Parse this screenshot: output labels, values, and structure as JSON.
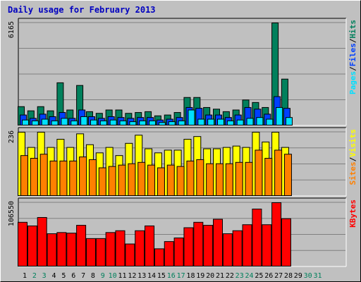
{
  "window": {
    "title": "Daily usage for February 2013"
  },
  "colors": {
    "hits": "#00805c",
    "files": "#0040ff",
    "pages": "#00e0ff",
    "visits": "#ffff00",
    "sites": "#ff8000",
    "kbytes": "#ff0000",
    "weekday_label": "#000000",
    "weekend_label": "#00805c",
    "background": "#c0c0c0",
    "grid": "#808080"
  },
  "chart_data": [
    {
      "type": "bar",
      "panel": "hits-files-pages",
      "legend": [
        "Pages",
        "Files",
        "Hits"
      ],
      "legend_separator": "/",
      "ylabel_max": "6165",
      "ylim": [
        0,
        6165
      ],
      "grid": true,
      "categories": [
        "1",
        "2",
        "3",
        "4",
        "5",
        "6",
        "7",
        "8",
        "9",
        "10",
        "11",
        "12",
        "13",
        "14",
        "15",
        "16",
        "17",
        "18",
        "19",
        "20",
        "21",
        "22",
        "23",
        "24",
        "25",
        "26",
        "27",
        "28",
        "29",
        "30",
        "31"
      ],
      "series": [
        {
          "name": "Hits",
          "values": [
            1150,
            900,
            1150,
            900,
            2580,
            950,
            2420,
            850,
            750,
            950,
            950,
            750,
            800,
            850,
            600,
            650,
            800,
            1700,
            1700,
            1100,
            1000,
            850,
            950,
            1550,
            1400,
            1100,
            6165,
            2800,
            0,
            0,
            0
          ]
        },
        {
          "name": "Files",
          "values": [
            650,
            450,
            700,
            550,
            800,
            450,
            950,
            550,
            450,
            550,
            500,
            450,
            500,
            500,
            350,
            400,
            500,
            1100,
            1050,
            650,
            650,
            500,
            650,
            1100,
            1000,
            700,
            1750,
            1050,
            0,
            0,
            0
          ]
        },
        {
          "name": "Pages",
          "values": [
            350,
            300,
            400,
            300,
            450,
            300,
            550,
            350,
            300,
            350,
            300,
            250,
            300,
            300,
            200,
            250,
            300,
            950,
            400,
            400,
            400,
            300,
            350,
            450,
            500,
            400,
            1100,
            500,
            0,
            0,
            0
          ]
        }
      ]
    },
    {
      "type": "bar",
      "panel": "visits-sites",
      "legend": [
        "Sites",
        "Visits"
      ],
      "legend_separator": "/",
      "ylabel_max": "236",
      "ylim": [
        0,
        236
      ],
      "grid": true,
      "categories": [
        "1",
        "2",
        "3",
        "4",
        "5",
        "6",
        "7",
        "8",
        "9",
        "10",
        "11",
        "12",
        "13",
        "14",
        "15",
        "16",
        "17",
        "18",
        "19",
        "20",
        "21",
        "22",
        "23",
        "24",
        "25",
        "26",
        "27",
        "28",
        "29",
        "30",
        "31"
      ],
      "series": [
        {
          "name": "Visits",
          "values": [
            236,
            180,
            236,
            180,
            210,
            180,
            230,
            190,
            160,
            180,
            150,
            195,
            225,
            175,
            160,
            170,
            170,
            210,
            220,
            175,
            175,
            180,
            185,
            180,
            236,
            200,
            236,
            180,
            0,
            0,
            0
          ]
        },
        {
          "name": "Sites",
          "values": [
            150,
            140,
            155,
            130,
            130,
            130,
            145,
            135,
            105,
            110,
            115,
            120,
            125,
            115,
            105,
            115,
            110,
            130,
            135,
            120,
            120,
            120,
            125,
            125,
            170,
            140,
            170,
            155,
            0,
            0,
            0
          ]
        }
      ]
    },
    {
      "type": "bar",
      "panel": "kbytes",
      "legend": [
        "KBytes"
      ],
      "ylabel_max": "106550",
      "ylim": [
        0,
        106550
      ],
      "grid": true,
      "categories": [
        "1",
        "2",
        "3",
        "4",
        "5",
        "6",
        "7",
        "8",
        "9",
        "10",
        "11",
        "12",
        "13",
        "14",
        "15",
        "16",
        "17",
        "18",
        "19",
        "20",
        "21",
        "22",
        "23",
        "24",
        "25",
        "26",
        "27",
        "28",
        "29",
        "30",
        "31"
      ],
      "series": [
        {
          "name": "KBytes",
          "values": [
            74000,
            68000,
            82000,
            55000,
            57000,
            56000,
            69000,
            47000,
            47000,
            57000,
            60000,
            38000,
            60000,
            68000,
            30000,
            42000,
            48000,
            65000,
            74000,
            69000,
            79000,
            55000,
            60000,
            70000,
            96000,
            70000,
            106550,
            80000,
            0,
            0,
            0
          ]
        }
      ]
    }
  ],
  "x_axis": {
    "labels": [
      "1",
      "2",
      "3",
      "4",
      "5",
      "6",
      "7",
      "8",
      "9",
      "10",
      "11",
      "12",
      "13",
      "14",
      "15",
      "16",
      "17",
      "18",
      "19",
      "20",
      "21",
      "22",
      "23",
      "24",
      "25",
      "26",
      "27",
      "28",
      "29",
      "30",
      "31"
    ],
    "weekend": [
      false,
      true,
      true,
      false,
      false,
      false,
      false,
      false,
      true,
      true,
      false,
      false,
      false,
      false,
      false,
      true,
      true,
      false,
      false,
      false,
      false,
      false,
      true,
      true,
      false,
      false,
      false,
      false,
      false,
      true,
      true
    ]
  }
}
